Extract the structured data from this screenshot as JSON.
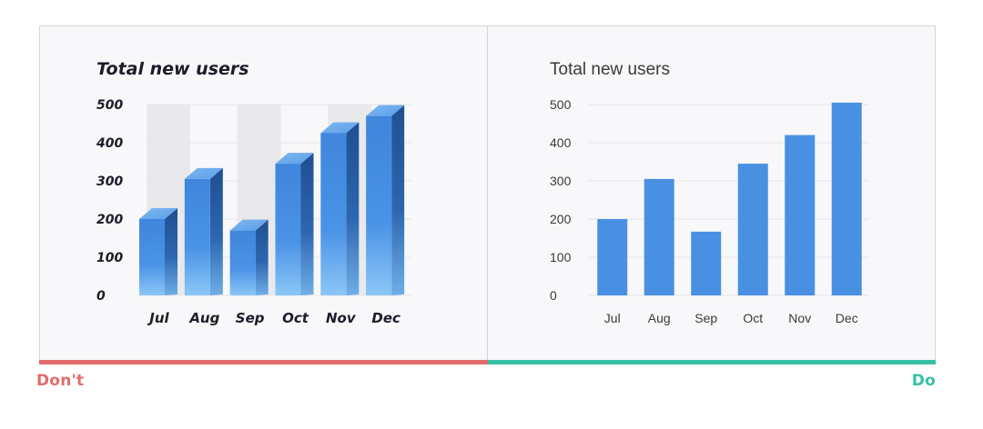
{
  "colors": {
    "panel_bg": "#f8f8fa",
    "panel_border": "#d5d5d8",
    "bar_blue": "#4a90e2",
    "dont_red": "#e46b6b",
    "do_teal": "#36c1a5",
    "text_dark": "#1c1c2b",
    "text_gray": "#3a3a3a",
    "grid": "#e6e6ea",
    "band": "#e9e9ec"
  },
  "labels": {
    "dont": "Don't",
    "do": "Do"
  },
  "chart_data": [
    {
      "id": "dont",
      "type": "bar",
      "style": "3d",
      "title": "Total new users",
      "categories": [
        "Jul",
        "Aug",
        "Sep",
        "Oct",
        "Nov",
        "Dec"
      ],
      "values": [
        200,
        305,
        170,
        345,
        425,
        470
      ],
      "yticks": [
        "0",
        "100",
        "200",
        "300",
        "400",
        "500"
      ],
      "ylim": [
        0,
        500
      ],
      "xlabel": "",
      "ylabel": ""
    },
    {
      "id": "do",
      "type": "bar",
      "style": "flat",
      "title": "Total new users",
      "categories": [
        "Jul",
        "Aug",
        "Sep",
        "Oct",
        "Nov",
        "Dec"
      ],
      "values": [
        200,
        305,
        167,
        345,
        420,
        505
      ],
      "yticks": [
        "0",
        "100",
        "200",
        "300",
        "400",
        "500"
      ],
      "ylim": [
        0,
        500
      ],
      "xlabel": "",
      "ylabel": ""
    }
  ]
}
